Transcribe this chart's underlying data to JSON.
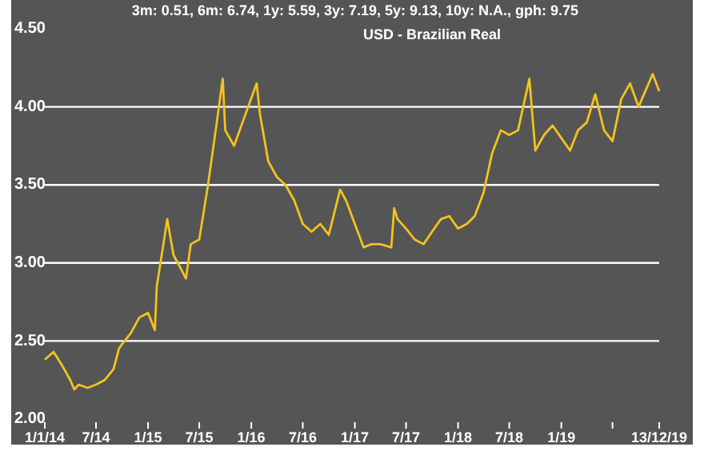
{
  "chart_data": {
    "type": "line",
    "title": "USD - Brazilian Real",
    "subtitle": "3m: 0.51,   6m: 6.74,   1y: 5.59,   3y: 7.19,   5y: 9.13,   10y: N.A.,   gph: 9.75",
    "x": [
      "2014-01-01",
      "2014-02-01",
      "2014-03-01",
      "2014-04-01",
      "2014-04-15",
      "2014-05-01",
      "2014-06-01",
      "2014-07-01",
      "2014-08-01",
      "2014-09-01",
      "2014-09-20",
      "2014-10-01",
      "2014-11-01",
      "2014-12-01",
      "2015-01-01",
      "2015-01-25",
      "2015-02-01",
      "2015-03-10",
      "2015-04-01",
      "2015-05-01",
      "2015-05-15",
      "2015-06-01",
      "2015-07-01",
      "2015-08-01",
      "2015-09-01",
      "2015-09-22",
      "2015-10-01",
      "2015-11-01",
      "2015-12-01",
      "2016-01-20",
      "2016-02-01",
      "2016-03-01",
      "2016-04-01",
      "2016-05-01",
      "2016-06-01",
      "2016-07-01",
      "2016-08-01",
      "2016-09-01",
      "2016-10-01",
      "2016-11-10",
      "2016-12-01",
      "2017-01-01",
      "2017-02-01",
      "2017-03-01",
      "2017-04-01",
      "2017-05-10",
      "2017-05-20",
      "2017-06-01",
      "2017-07-01",
      "2017-08-01",
      "2017-09-01",
      "2017-10-01",
      "2017-11-01",
      "2017-12-01",
      "2018-01-01",
      "2018-02-01",
      "2018-03-01",
      "2018-04-01",
      "2018-05-01",
      "2018-06-01",
      "2018-07-01",
      "2018-08-01",
      "2018-09-10",
      "2018-10-01",
      "2018-11-01",
      "2018-12-01",
      "2019-01-01",
      "2019-02-01",
      "2019-03-01",
      "2019-04-01",
      "2019-05-01",
      "2019-06-01",
      "2019-07-01",
      "2019-08-01",
      "2019-09-01",
      "2019-10-01",
      "2019-11-20",
      "2019-12-13"
    ],
    "values": [
      2.38,
      2.43,
      2.35,
      2.25,
      2.19,
      2.22,
      2.2,
      2.22,
      2.25,
      2.32,
      2.45,
      2.48,
      2.55,
      2.65,
      2.68,
      2.57,
      2.85,
      3.28,
      3.05,
      2.95,
      2.9,
      3.12,
      3.15,
      3.5,
      3.9,
      4.18,
      3.85,
      3.75,
      3.9,
      4.15,
      3.95,
      3.65,
      3.55,
      3.5,
      3.4,
      3.25,
      3.2,
      3.25,
      3.18,
      3.47,
      3.4,
      3.25,
      3.1,
      3.12,
      3.12,
      3.1,
      3.35,
      3.28,
      3.22,
      3.15,
      3.12,
      3.2,
      3.28,
      3.3,
      3.22,
      3.25,
      3.3,
      3.45,
      3.7,
      3.85,
      3.82,
      3.85,
      4.18,
      3.72,
      3.82,
      3.88,
      3.8,
      3.72,
      3.85,
      3.9,
      4.08,
      3.85,
      3.78,
      4.05,
      4.15,
      4,
      4.21,
      4.1
    ],
    "color": "#f2c31c",
    "ylim": [
      2,
      4.5
    ],
    "yticks": [
      {
        "value": 2,
        "label": "2.00"
      },
      {
        "value": 2.5,
        "label": "2.50"
      },
      {
        "value": 3,
        "label": "3.00"
      },
      {
        "value": 3.5,
        "label": "3.50"
      },
      {
        "value": 4,
        "label": "4.00"
      },
      {
        "value": 4.5,
        "label": "4.50"
      }
    ],
    "xlim": [
      "2014-01-01",
      "2019-12-13"
    ],
    "xticks": [
      {
        "value": "2014-01-01",
        "label": "1/1/14"
      },
      {
        "value": "2014-07-01",
        "label": "7/14"
      },
      {
        "value": "2015-01-01",
        "label": "1/15"
      },
      {
        "value": "2015-07-01",
        "label": "7/15"
      },
      {
        "value": "2016-01-01",
        "label": "1/16"
      },
      {
        "value": "2016-07-01",
        "label": "7/16"
      },
      {
        "value": "2017-01-01",
        "label": "1/17"
      },
      {
        "value": "2017-07-01",
        "label": "7/17"
      },
      {
        "value": "2018-01-01",
        "label": "1/18"
      },
      {
        "value": "2018-07-01",
        "label": "7/18"
      },
      {
        "value": "2019-01-01",
        "label": "1/19"
      },
      {
        "value": "2019-07-01",
        "label": null
      },
      {
        "value": "2019-12-13",
        "label": "13/12/19"
      }
    ],
    "grid": "y"
  }
}
